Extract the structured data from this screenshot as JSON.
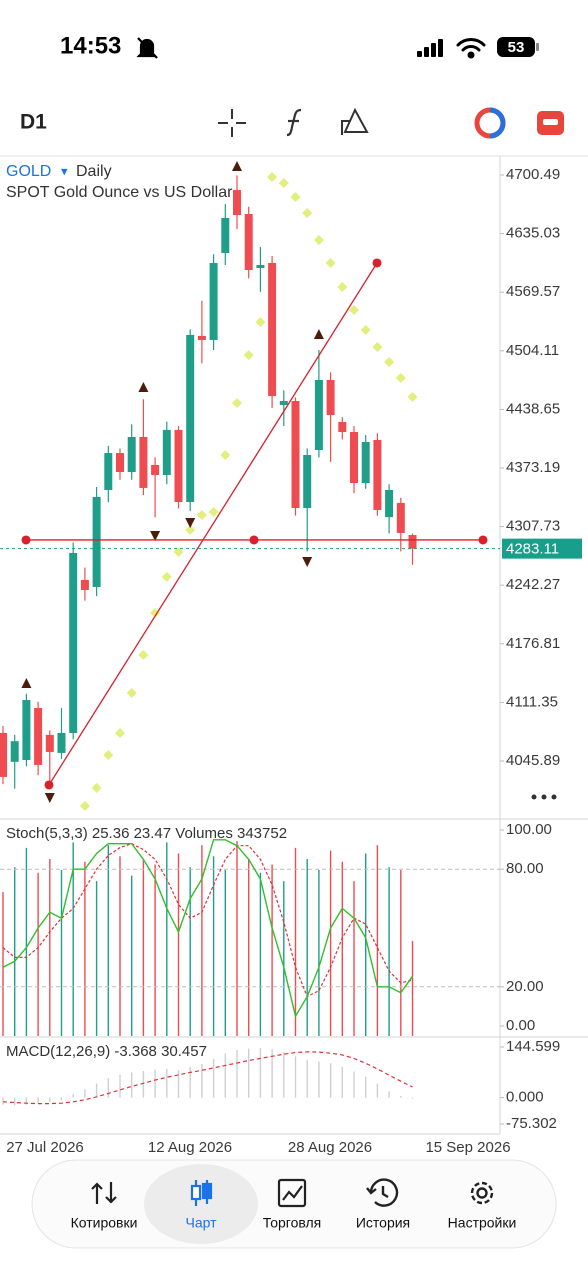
{
  "status_bar": {
    "time": "14:53",
    "battery": "53"
  },
  "toolbar": {
    "timeframe": "D1"
  },
  "chart_data": [
    {
      "type": "candlestick",
      "symbol": "GOLD",
      "symbol_menu": "▾",
      "period": "Daily",
      "description": "SPOT Gold Ounce vs US Dollar",
      "up_color": "#1f9e89",
      "down_color": "#ef4c52",
      "open": [
        4077.2,
        4045,
        4047.0,
        4105.1,
        4075.0,
        4054.9,
        4077.2,
        4248.1,
        4240.3,
        4348.6,
        4389.9,
        4368.7,
        4407.8,
        4376.6,
        4365.4,
        4415.7,
        4335.2,
        4520.7,
        4516.2,
        4613.4,
        4683.7,
        4656.9,
        4596.6,
        4602.2,
        4443.6,
        4448.0,
        4328.5,
        4393.3,
        4471.5,
        4424.6,
        4413.4,
        4356.4,
        4404.5,
        4318.3,
        4334.1,
        4298.3
      ],
      "high": [
        4085,
        4075,
        4121,
        4112,
        4080,
        4105,
        4290,
        4262,
        4352,
        4398,
        4395,
        4422,
        4450,
        4385,
        4425,
        4420,
        4528,
        4560,
        4612,
        4668,
        4700,
        4665,
        4620,
        4610,
        4460,
        4452,
        4395,
        4505,
        4480,
        4430,
        4420,
        4410,
        4412,
        4355,
        4340,
        4300
      ],
      "low": [
        4020,
        4015,
        4040,
        4030,
        4020,
        4048,
        4070,
        4225,
        4230,
        4335,
        4360,
        4360,
        4343,
        4318,
        4355,
        4328,
        4325,
        4490,
        4505,
        4600,
        4640,
        4585,
        4570,
        4440,
        4420,
        4320,
        4280,
        4385,
        4380,
        4405,
        4345,
        4350,
        4320,
        4300,
        4280,
        4265
      ],
      "close": [
        4028.1,
        4068,
        4114.0,
        4041.5,
        4056.0,
        4077.2,
        4278.3,
        4236.9,
        4340.8,
        4389.9,
        4368.7,
        4407.8,
        4350.9,
        4365.4,
        4415.7,
        4335.2,
        4521.8,
        4516.2,
        4602.2,
        4652.5,
        4655.8,
        4594.4,
        4600,
        4453.6,
        4448.0,
        4328.5,
        4387.7,
        4471.5,
        4432.4,
        4413.4,
        4356.4,
        4402.2,
        4326.3,
        4348.6,
        4300.6,
        4283.11
      ],
      "sar": [
        null,
        null,
        null,
        null,
        null,
        null,
        null,
        3995.7,
        4015.8,
        4052.6,
        4077.2,
        4121.9,
        4164.3,
        4211.3,
        4251.5,
        4279.4,
        4304.0,
        4320.7,
        4324.1,
        4387.7,
        4445.8,
        4499.4,
        4536.3,
        4698.3,
        4691.6,
        4675.9,
        4658.0,
        4627.9,
        4602.2,
        4575.4,
        4549.7,
        4527.3,
        4508.3,
        4491.6,
        4473.7,
        4452.5
      ],
      "sar_color": "#e2ef7c",
      "fractal_up": [
        null,
        null,
        4131.9,
        null,
        null,
        null,
        null,
        null,
        null,
        null,
        null,
        null,
        4462.6,
        null,
        null,
        null,
        null,
        null,
        null,
        null,
        4709.4,
        null,
        null,
        null,
        null,
        null,
        null,
        4521.8,
        null,
        null,
        null,
        null,
        null,
        null,
        null,
        null
      ],
      "fractal_down": [
        null,
        null,
        null,
        null,
        4005.7,
        null,
        null,
        null,
        null,
        null,
        null,
        null,
        null,
        4298.3,
        null,
        null,
        4312.9,
        null,
        null,
        null,
        null,
        null,
        null,
        null,
        null,
        null,
        4269.3,
        null,
        null,
        null,
        null,
        null,
        null,
        null,
        null,
        null
      ],
      "fractal_color": "#4a1d0c",
      "trend_line": {
        "start": 4019.1,
        "end": 4602.2
      },
      "horizontal_line": 4292.8,
      "line_color": "#d9202b",
      "last_price": 4283.11,
      "last_price_color": "#1a9e8c",
      "ylim": [
        3982.2,
        4720.6
      ],
      "yticks": [
        4700.49,
        4635.03,
        4569.57,
        4504.11,
        4438.65,
        4373.19,
        4307.73,
        4242.27,
        4176.81,
        4111.35,
        4045.89
      ],
      "xticks": [
        "27 Jul 2026",
        "12 Aug 2026",
        "28 Aug 2026",
        "15 Sep 2026"
      ]
    },
    {
      "type": "stochastic",
      "label": "Stoch(5,3,3) 25.36 23.47 Volumes 343752",
      "main": [
        30,
        33,
        40,
        50,
        58,
        55,
        80,
        80,
        88,
        93,
        93,
        93,
        85,
        75,
        60,
        48,
        65,
        75,
        95,
        95,
        92,
        85,
        75,
        50,
        30,
        5,
        15,
        30,
        50,
        60,
        55,
        45,
        20,
        20,
        17,
        25.36
      ],
      "signal": [
        40,
        35,
        35,
        40,
        48,
        55,
        60,
        70,
        80,
        87,
        91,
        93,
        90,
        85,
        75,
        62,
        55,
        58,
        72,
        85,
        92,
        92,
        85,
        72,
        53,
        30,
        15,
        18,
        30,
        45,
        55,
        52,
        40,
        28,
        22,
        23.47
      ],
      "main_color": "#2fbf2f",
      "signal_color": "#e0303a",
      "volumes": [
        520000,
        610000,
        680000,
        590000,
        640000,
        600000,
        700000,
        630000,
        560000,
        690000,
        650000,
        580000,
        640000,
        620000,
        700000,
        660000,
        610000,
        690000,
        650000,
        600000,
        705000,
        640000,
        590000,
        620000,
        560000,
        680000,
        640000,
        600000,
        670000,
        630000,
        560000,
        660000,
        690000,
        610000,
        600000,
        343752
      ],
      "levels": [
        80,
        20
      ],
      "ylim": [
        -5.1,
        105.1
      ],
      "yticks": [
        {
          "value": 100,
          "label": "100.00"
        },
        {
          "value": 80,
          "label": "80.00"
        },
        {
          "value": 20,
          "label": "20.00"
        },
        {
          "value": 0,
          "label": "0.00"
        }
      ]
    },
    {
      "type": "macd",
      "label": "MACD(12,26,9) -3.368 30.457",
      "macd": [
        -20,
        -22,
        -20,
        -15,
        -12,
        -8,
        10,
        24,
        40,
        55,
        65,
        72,
        76,
        80,
        82,
        78,
        88,
        96,
        110,
        126,
        136,
        140,
        142,
        138,
        130,
        118,
        108,
        103,
        98,
        88,
        75,
        60,
        40,
        18,
        5,
        -3.368
      ],
      "signal": [
        -12,
        -14,
        -16,
        -17,
        -17,
        -16,
        -12,
        -6,
        2,
        12,
        22,
        32,
        41,
        50,
        58,
        65,
        72,
        78,
        85,
        92,
        99,
        106,
        112,
        118,
        124,
        129,
        131,
        130,
        127,
        122,
        112,
        98,
        82,
        64,
        47,
        30.457
      ],
      "histogram_color": "#cfcfcf",
      "signal_color": "#e0303a",
      "ylim": [
        -98.2,
        170.3
      ],
      "yticks": [
        144.599,
        {
          "value": 0,
          "label": "0.000"
        },
        -75.302
      ]
    }
  ],
  "nav": {
    "items": [
      "Котировки",
      "Чарт",
      "Торговля",
      "История",
      "Настройки"
    ],
    "active": 1
  }
}
